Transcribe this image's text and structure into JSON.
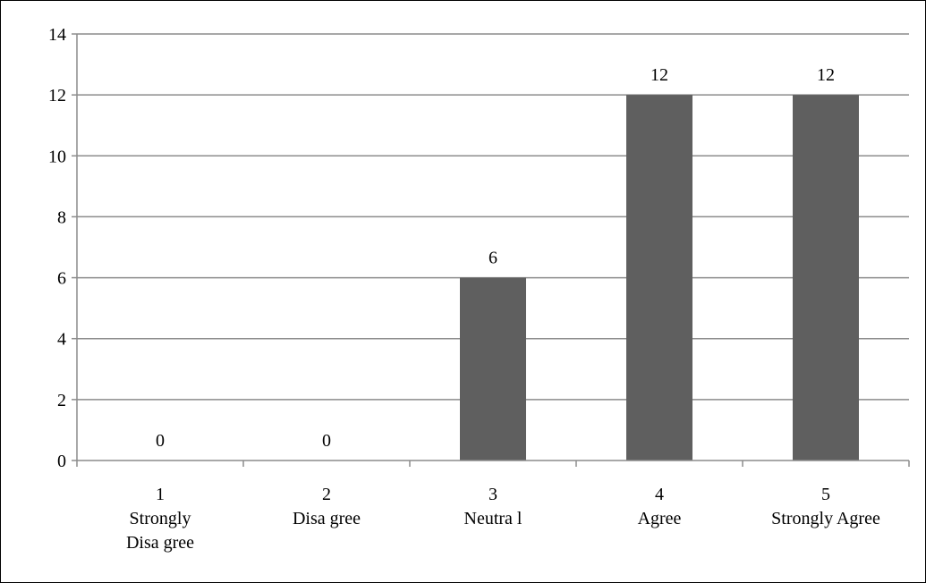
{
  "chart_data": {
    "type": "bar",
    "categories": [
      [
        "1",
        "Strongly",
        "Disa gree"
      ],
      [
        "2",
        "Disa gree"
      ],
      [
        "3",
        "Neutra l"
      ],
      [
        "4",
        "Agree"
      ],
      [
        "5",
        "Strongly Agree"
      ]
    ],
    "values": [
      0,
      0,
      6,
      12,
      12
    ],
    "data_labels": [
      "0",
      "0",
      "6",
      "12",
      "12"
    ],
    "title": "",
    "xlabel": "",
    "ylabel": "",
    "ylim": [
      0,
      14
    ],
    "yticks": [
      0,
      2,
      4,
      6,
      8,
      10,
      12,
      14
    ],
    "grid": true,
    "legend": "none",
    "colors": {
      "bar": "#5f5f5f",
      "grid": "#8c8c8c",
      "axis": "#8c8c8c"
    }
  }
}
